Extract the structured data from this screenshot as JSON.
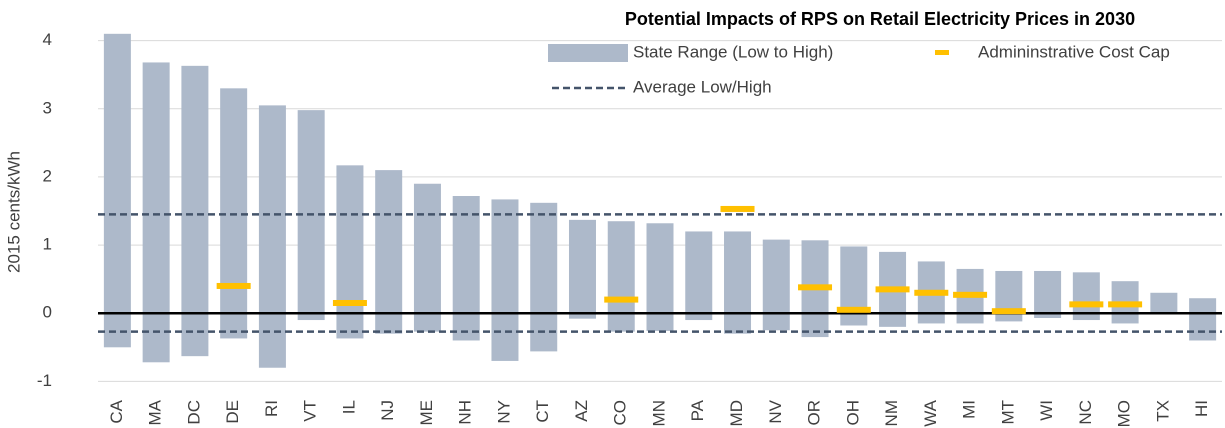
{
  "chart_data": {
    "type": "range_bar",
    "title": "Potential Impacts of RPS on Retail Electricity Prices in 2030",
    "y_label": "2015 cents/kWh",
    "categories": [
      "CA",
      "MA",
      "DC",
      "DE",
      "RI",
      "VT",
      "IL",
      "NJ",
      "ME",
      "NH",
      "NY",
      "CT",
      "AZ",
      "CO",
      "MN",
      "PA",
      "MD",
      "NV",
      "OR",
      "OH",
      "NM",
      "WA",
      "MI",
      "MT",
      "WI",
      "NC",
      "MO",
      "TX",
      "HI"
    ],
    "range": {
      "name": "State Range (Low to High)",
      "color": "#adb9ca",
      "low": [
        -0.5,
        -0.72,
        -0.63,
        -0.37,
        -0.8,
        -0.1,
        -0.37,
        -0.3,
        -0.27,
        -0.4,
        -0.7,
        -0.56,
        -0.08,
        -0.27,
        -0.26,
        -0.1,
        -0.3,
        -0.25,
        -0.35,
        -0.18,
        -0.2,
        -0.15,
        -0.15,
        -0.12,
        -0.07,
        -0.1,
        -0.15,
        0,
        -0.4
      ],
      "high": [
        4.1,
        3.68,
        3.63,
        3.3,
        3.05,
        2.98,
        2.17,
        2.1,
        1.9,
        1.72,
        1.67,
        1.62,
        1.37,
        1.35,
        1.32,
        1.2,
        1.2,
        1.08,
        1.07,
        0.98,
        0.9,
        0.76,
        0.65,
        0.62,
        0.62,
        0.6,
        0.47,
        0.3,
        0.22
      ]
    },
    "cost_cap": {
      "name": "Admininstrative Cost Cap",
      "color": "#ffc000",
      "values": [
        null,
        null,
        null,
        0.4,
        null,
        null,
        0.15,
        null,
        null,
        null,
        null,
        null,
        null,
        0.2,
        null,
        null,
        1.53,
        null,
        0.38,
        0.05,
        0.35,
        0.3,
        0.27,
        0.03,
        null,
        0.13,
        0.13,
        null,
        null
      ]
    },
    "averages": {
      "name": "Average Low/High",
      "color": "#44546a",
      "values": [
        -0.27,
        1.45
      ]
    },
    "ylim": [
      -1.2,
      4.2
    ],
    "yticks": [
      -1,
      0,
      1,
      2,
      3,
      4
    ],
    "grid": true
  }
}
